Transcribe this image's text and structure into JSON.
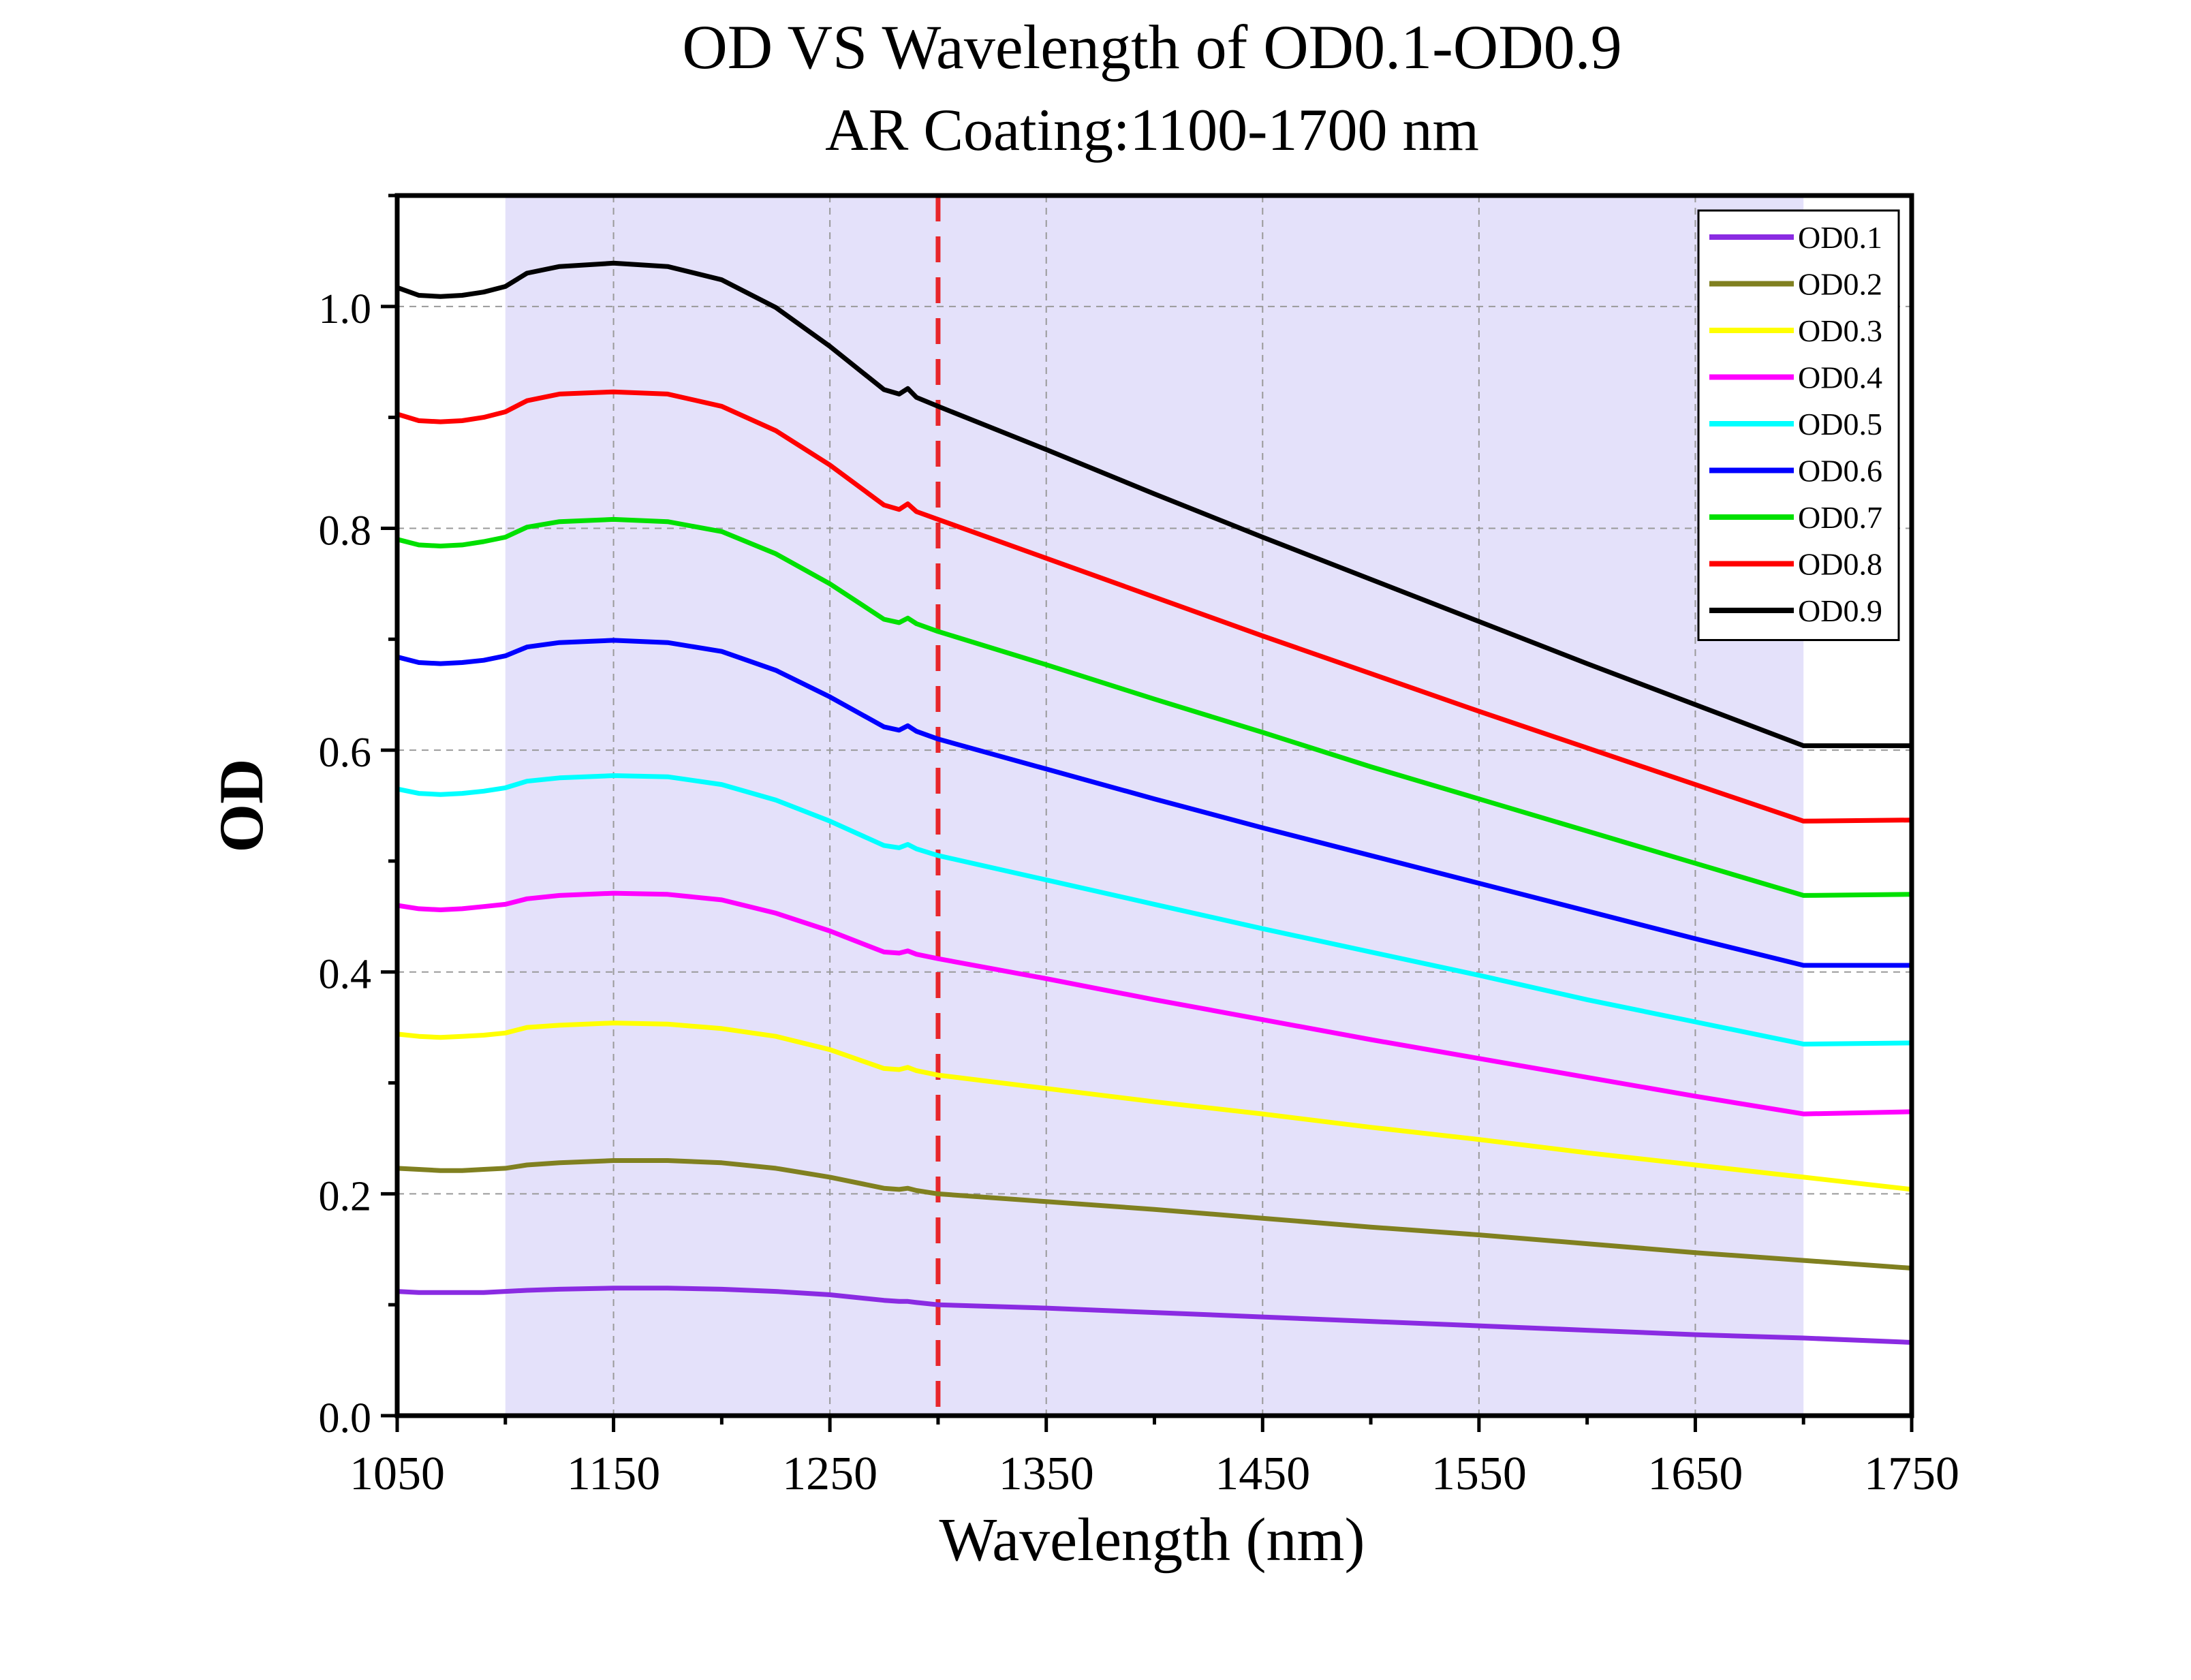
{
  "chart_data": {
    "type": "line",
    "title": "OD VS Wavelength of OD0.1-OD0.9",
    "subtitle": "AR Coating:1100-1700 nm",
    "xlabel": "Wavelength (nm)",
    "ylabel": "OD",
    "xlim": [
      1050,
      1750
    ],
    "ylim": [
      0,
      1.1
    ],
    "xticks": [
      1050,
      1150,
      1250,
      1350,
      1450,
      1550,
      1650,
      1750
    ],
    "xtick_labels": [
      "1050",
      "1150",
      "1250",
      "1350",
      "1450",
      "1550",
      "1650",
      "1750"
    ],
    "yticks": [
      0,
      0.2,
      0.4,
      0.6,
      0.8,
      1.0
    ],
    "ytick_labels": [
      "0.0",
      "0.2",
      "0.4",
      "0.6",
      "0.8",
      "1.0"
    ],
    "grid": true,
    "legend_position": "top-right",
    "shaded_band": {
      "x_range": [
        1100,
        1700
      ],
      "color": "#e4e1fa"
    },
    "reference_line": {
      "x": 1300,
      "color": "#e8262b",
      "style": "dashed"
    },
    "x": [
      1050,
      1060,
      1070,
      1080,
      1090,
      1100,
      1110,
      1125,
      1150,
      1175,
      1200,
      1225,
      1250,
      1275,
      1282,
      1286,
      1290,
      1300,
      1350,
      1400,
      1450,
      1500,
      1550,
      1600,
      1650,
      1700,
      1750
    ],
    "series": [
      {
        "name": "OD0.1",
        "color": "#8a2be2",
        "values": [
          0.112,
          0.111,
          0.111,
          0.111,
          0.111,
          0.112,
          0.113,
          0.114,
          0.115,
          0.115,
          0.114,
          0.112,
          0.109,
          0.104,
          0.103,
          0.103,
          0.102,
          0.1,
          0.097,
          0.093,
          0.089,
          0.085,
          0.081,
          0.077,
          0.073,
          0.07,
          0.066
        ]
      },
      {
        "name": "OD0.2",
        "color": "#808020",
        "values": [
          0.223,
          0.222,
          0.221,
          0.221,
          0.222,
          0.223,
          0.226,
          0.228,
          0.23,
          0.23,
          0.228,
          0.223,
          0.215,
          0.205,
          0.204,
          0.205,
          0.203,
          0.2,
          0.193,
          0.186,
          0.178,
          0.17,
          0.163,
          0.155,
          0.147,
          0.14,
          0.133
        ]
      },
      {
        "name": "OD0.3",
        "color": "#ffff00",
        "values": [
          0.344,
          0.342,
          0.341,
          0.342,
          0.343,
          0.345,
          0.35,
          0.352,
          0.354,
          0.353,
          0.349,
          0.342,
          0.33,
          0.313,
          0.312,
          0.314,
          0.311,
          0.307,
          0.295,
          0.283,
          0.272,
          0.26,
          0.249,
          0.237,
          0.226,
          0.215,
          0.204
        ]
      },
      {
        "name": "OD0.4",
        "color": "#ff00ff",
        "values": [
          0.46,
          0.457,
          0.456,
          0.457,
          0.459,
          0.461,
          0.466,
          0.469,
          0.471,
          0.47,
          0.465,
          0.453,
          0.437,
          0.418,
          0.417,
          0.419,
          0.416,
          0.412,
          0.394,
          0.375,
          0.357,
          0.339,
          0.322,
          0.305,
          0.288,
          0.272,
          0.274
        ]
      },
      {
        "name": "OD0.5",
        "color": "#00ffff",
        "values": [
          0.565,
          0.561,
          0.56,
          0.561,
          0.563,
          0.566,
          0.572,
          0.575,
          0.577,
          0.576,
          0.569,
          0.555,
          0.536,
          0.514,
          0.512,
          0.515,
          0.511,
          0.505,
          0.483,
          0.461,
          0.439,
          0.418,
          0.397,
          0.375,
          0.355,
          0.335,
          0.336
        ]
      },
      {
        "name": "OD0.6",
        "color": "#0000ff",
        "values": [
          0.684,
          0.679,
          0.678,
          0.679,
          0.681,
          0.685,
          0.693,
          0.697,
          0.699,
          0.697,
          0.689,
          0.672,
          0.648,
          0.621,
          0.618,
          0.622,
          0.617,
          0.61,
          0.583,
          0.556,
          0.53,
          0.505,
          0.48,
          0.455,
          0.43,
          0.406,
          0.406
        ]
      },
      {
        "name": "OD0.7",
        "color": "#00e000",
        "values": [
          0.79,
          0.785,
          0.784,
          0.785,
          0.788,
          0.792,
          0.801,
          0.806,
          0.808,
          0.806,
          0.797,
          0.777,
          0.75,
          0.718,
          0.715,
          0.719,
          0.714,
          0.707,
          0.677,
          0.646,
          0.616,
          0.585,
          0.556,
          0.527,
          0.498,
          0.469,
          0.47
        ]
      },
      {
        "name": "OD0.8",
        "color": "#ff0000",
        "values": [
          0.903,
          0.897,
          0.896,
          0.897,
          0.9,
          0.905,
          0.915,
          0.921,
          0.923,
          0.921,
          0.91,
          0.888,
          0.857,
          0.821,
          0.817,
          0.822,
          0.815,
          0.808,
          0.773,
          0.738,
          0.703,
          0.669,
          0.635,
          0.602,
          0.569,
          0.536,
          0.537
        ]
      },
      {
        "name": "OD0.9",
        "color": "#000000",
        "values": [
          1.017,
          1.01,
          1.009,
          1.01,
          1.013,
          1.018,
          1.03,
          1.036,
          1.039,
          1.036,
          1.024,
          0.999,
          0.964,
          0.925,
          0.921,
          0.926,
          0.918,
          0.91,
          0.871,
          0.831,
          0.792,
          0.754,
          0.716,
          0.678,
          0.641,
          0.604,
          0.604
        ]
      }
    ]
  }
}
